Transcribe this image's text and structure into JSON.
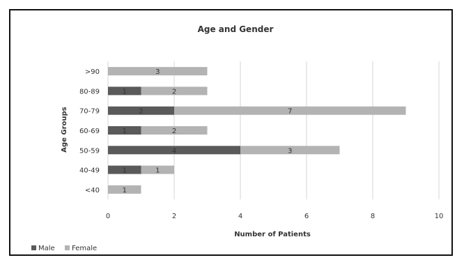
{
  "chart_data": {
    "type": "bar",
    "orientation": "horizontal",
    "stacked": true,
    "title": "Age and Gender",
    "xlabel": "Number of Patients",
    "ylabel": "Age Groups",
    "categories": [
      ">90",
      "80-89",
      "70-79",
      "60-69",
      "50-59",
      "40-49",
      "<40"
    ],
    "series": [
      {
        "name": "Male",
        "values": [
          0,
          1,
          2,
          1,
          4,
          1,
          0
        ],
        "color": "#5a5a5a"
      },
      {
        "name": "Female",
        "values": [
          3,
          2,
          7,
          2,
          3,
          1,
          1
        ],
        "color": "#b3b3b3"
      }
    ],
    "xlim": [
      0,
      10
    ],
    "xticks": [
      "0",
      "2",
      "4",
      "6",
      "8",
      "10"
    ],
    "grid": true,
    "legend": "bottom-left"
  }
}
